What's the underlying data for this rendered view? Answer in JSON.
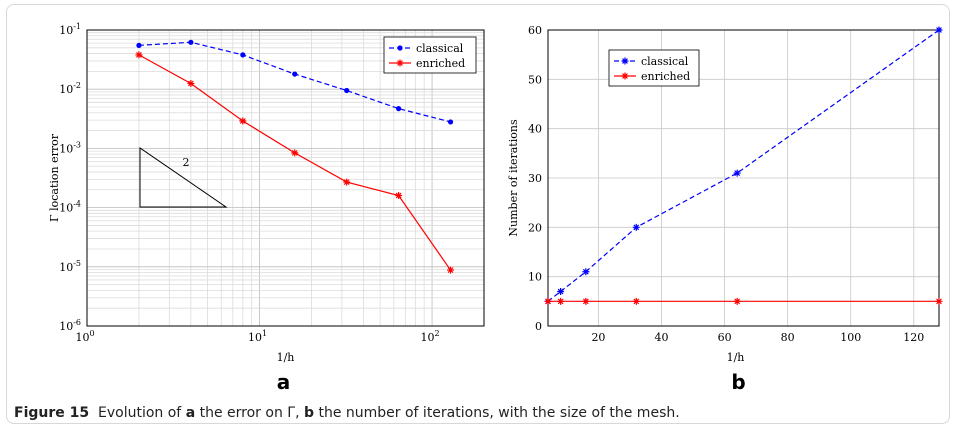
{
  "caption": {
    "label": "Figure 15",
    "seg1": "Evolution of",
    "a": "a",
    "seg2": "the error on Γ,",
    "b": "b",
    "seg3": "the number of iterations, with the size of the mesh."
  },
  "chart_data": [
    {
      "type": "line",
      "panel_label": "a",
      "xlabel": "1/h",
      "ylabel": "Γ location error",
      "xscale": "log",
      "yscale": "log",
      "xlim": [
        1,
        200
      ],
      "ylim": [
        1e-06,
        0.1
      ],
      "x_tick_exponents": [
        0,
        1,
        2
      ],
      "y_tick_exponents": [
        -6,
        -5,
        -4,
        -3,
        -2,
        -1
      ],
      "grid": true,
      "legend_position": "top-right",
      "slope_annotation": "2",
      "series": [
        {
          "name": "classical",
          "color": "#0000ff",
          "style": "dashed",
          "marker": "dot",
          "x": [
            2,
            4,
            8,
            16,
            32,
            64,
            128
          ],
          "y": [
            0.055,
            0.062,
            0.038,
            0.018,
            0.0095,
            0.0047,
            0.0028
          ]
        },
        {
          "name": "enriched",
          "color": "#ff0000",
          "style": "solid",
          "marker": "star",
          "x": [
            2,
            4,
            8,
            16,
            32,
            64,
            128
          ],
          "y": [
            0.038,
            0.0125,
            0.0029,
            0.00084,
            0.00027,
            0.00016,
            8.8e-06
          ]
        }
      ]
    },
    {
      "type": "line",
      "panel_label": "b",
      "xlabel": "1/h",
      "ylabel": "Number of iterations",
      "xlim": [
        4,
        128
      ],
      "ylim": [
        0,
        60
      ],
      "x_ticks": [
        20,
        40,
        60,
        80,
        100,
        120
      ],
      "y_ticks": [
        0,
        10,
        20,
        30,
        40,
        50,
        60
      ],
      "grid": true,
      "legend_position": "top-left",
      "series": [
        {
          "name": "classical",
          "color": "#0000ff",
          "style": "dashed",
          "marker": "star",
          "x": [
            4,
            8,
            16,
            32,
            64,
            128
          ],
          "y": [
            5,
            7,
            11,
            20,
            31,
            60
          ]
        },
        {
          "name": "enriched",
          "color": "#ff0000",
          "style": "solid",
          "marker": "star",
          "x": [
            4,
            8,
            16,
            32,
            64,
            128
          ],
          "y": [
            5,
            5,
            5,
            5,
            5,
            5
          ]
        }
      ]
    }
  ]
}
